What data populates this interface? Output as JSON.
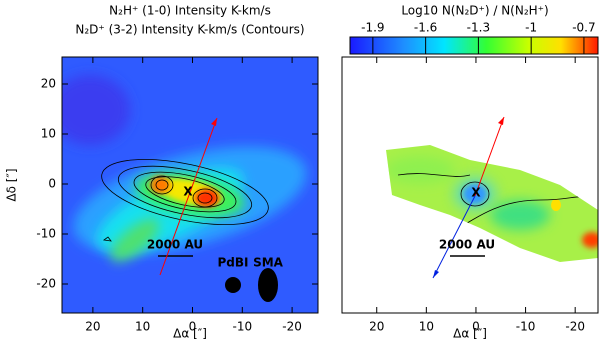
{
  "chart_data": [
    {
      "type": "heatmap",
      "title": [
        "N₂H⁺ (1-0) Intensity K-km/s",
        "N₂D⁺ (3-2) Intensity K-km/s (Contours)"
      ],
      "x_label": "Δα [″]",
      "y_label": "Δδ [″]",
      "xlim": [
        26.2,
        -25.2
      ],
      "ylim": [
        -25.8,
        25.4
      ],
      "xticks": [
        20,
        10,
        0,
        -10,
        -20
      ],
      "yticks": [
        -20,
        -10,
        0,
        10,
        20
      ],
      "annotations": [
        "2000 AU",
        "PdBI",
        "SMA",
        "X"
      ]
    },
    {
      "type": "heatmap",
      "title": [
        "Log10 N(N₂D⁺) / N(N₂H⁺)"
      ],
      "x_label": "Δα [″]",
      "xlim": [
        27,
        -24.6
      ],
      "ylim": [
        -25.8,
        25.4
      ],
      "xticks": [
        20,
        10,
        0,
        -10,
        -20
      ],
      "clim": [
        -2.03,
        -0.62
      ],
      "cticks": [
        -1.9,
        -1.6,
        -1.3,
        -1,
        -0.7
      ],
      "annotations": [
        "2000 AU",
        "X"
      ]
    }
  ]
}
